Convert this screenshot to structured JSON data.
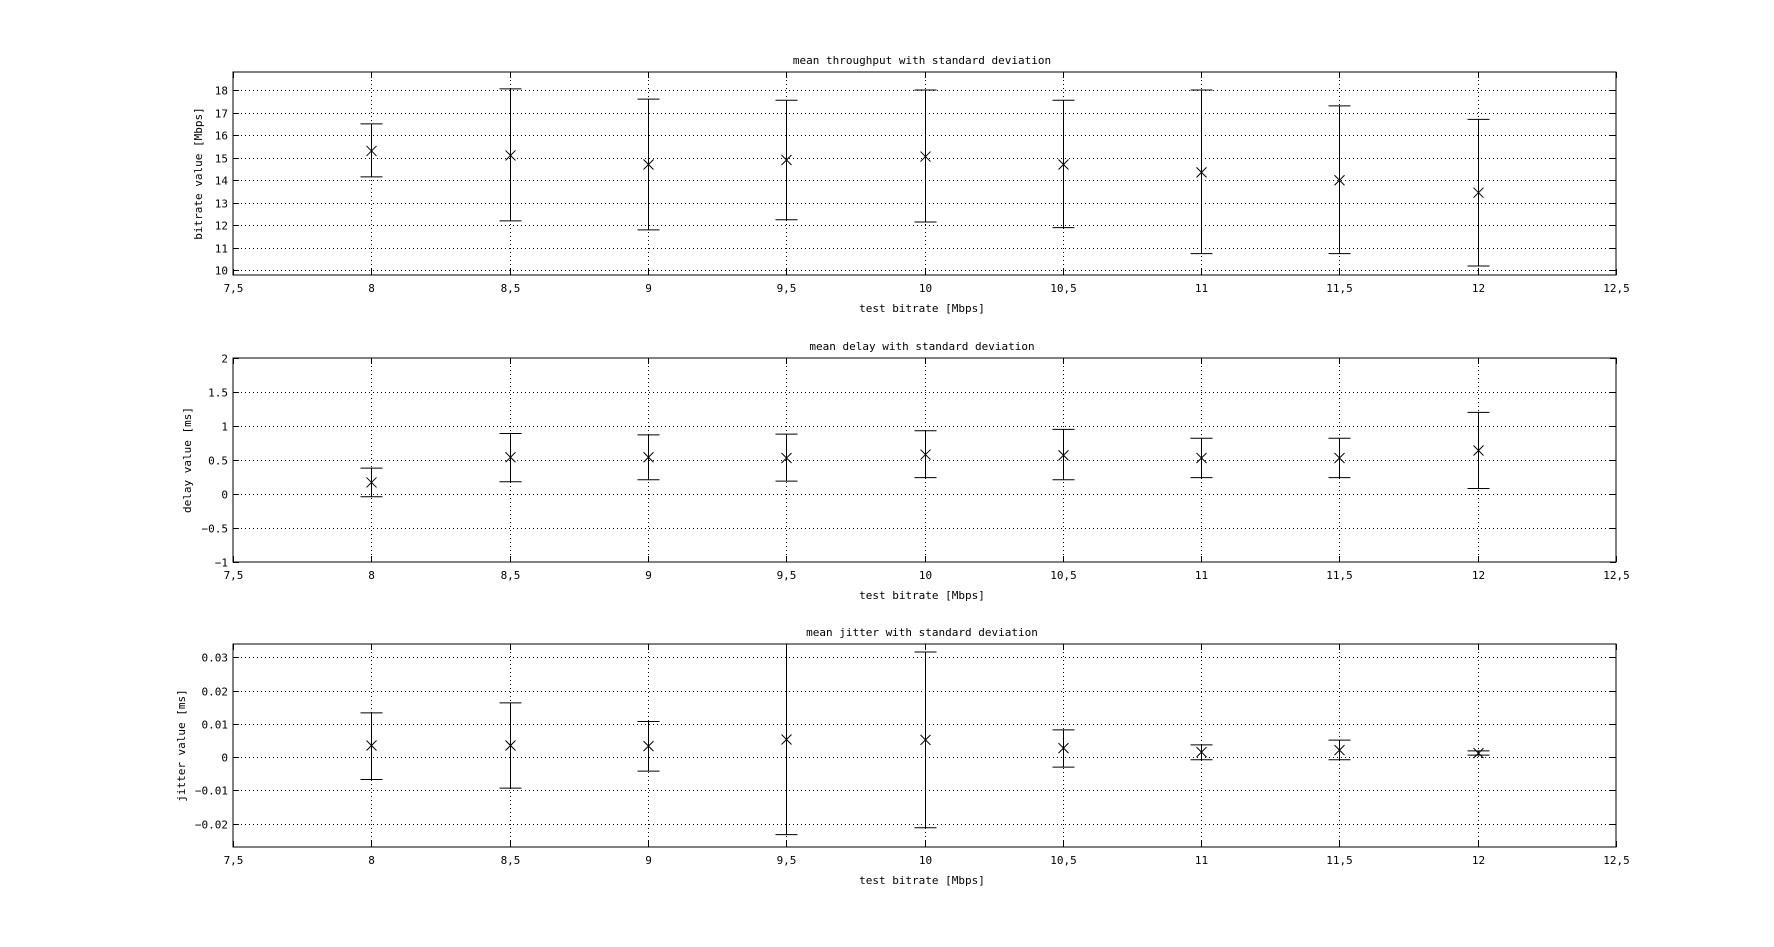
{
  "chart_data": [
    {
      "type": "errorbar",
      "title": "mean throughput with standard deviation",
      "xlabel": "test bitrate [Mbps]",
      "ylabel": "bitrate value [Mbps]",
      "xlim": [
        7.5,
        12.5
      ],
      "ylim": [
        9.8,
        18.8
      ],
      "x_ticks": [
        7.5,
        8,
        8.5,
        9,
        9.5,
        10,
        10.5,
        11,
        11.5,
        12,
        12.5
      ],
      "x_tick_labels": [
        "7,5",
        "8",
        "8,5",
        "9",
        "9,5",
        "10",
        "10,5",
        "11",
        "11,5",
        "12",
        "12,5"
      ],
      "y_ticks": [
        10,
        11,
        12,
        13,
        14,
        15,
        16,
        17,
        18
      ],
      "y_tick_labels": [
        "10",
        "11",
        "12",
        "13",
        "14",
        "15",
        "16",
        "17",
        "18"
      ],
      "grid": true,
      "marker": "x",
      "x": [
        8,
        8.5,
        9,
        9.5,
        10,
        10.5,
        11,
        11.5,
        12
      ],
      "mean": [
        15.3,
        15.1,
        14.7,
        14.9,
        15.05,
        14.7,
        14.35,
        14.0,
        13.45
      ],
      "lower": [
        14.15,
        12.2,
        11.8,
        12.25,
        12.15,
        11.9,
        10.75,
        10.75,
        10.2
      ],
      "upper": [
        16.5,
        18.05,
        17.6,
        17.55,
        18.0,
        17.55,
        18.0,
        17.3,
        16.7
      ]
    },
    {
      "type": "errorbar",
      "title": "mean delay with standard deviation",
      "xlabel": "test bitrate [Mbps]",
      "ylabel": "delay value [ms]",
      "xlim": [
        7.5,
        12.5
      ],
      "ylim": [
        -1,
        2
      ],
      "x_ticks": [
        7.5,
        8,
        8.5,
        9,
        9.5,
        10,
        10.5,
        11,
        11.5,
        12,
        12.5
      ],
      "x_tick_labels": [
        "7,5",
        "8",
        "8,5",
        "9",
        "9,5",
        "10",
        "10,5",
        "11",
        "11,5",
        "12",
        "12,5"
      ],
      "y_ticks": [
        -1,
        -0.5,
        0,
        0.5,
        1,
        1.5,
        2
      ],
      "y_tick_labels": [
        "−1",
        "−0.5",
        "0",
        "0.5",
        "1",
        "1.5",
        "2"
      ],
      "grid": true,
      "marker": "x",
      "x": [
        8,
        8.5,
        9,
        9.5,
        10,
        10.5,
        11,
        11.5,
        12
      ],
      "mean": [
        0.17,
        0.54,
        0.54,
        0.53,
        0.58,
        0.57,
        0.53,
        0.53,
        0.64
      ],
      "lower": [
        -0.04,
        0.18,
        0.21,
        0.19,
        0.24,
        0.21,
        0.24,
        0.24,
        0.08
      ],
      "upper": [
        0.38,
        0.89,
        0.87,
        0.88,
        0.93,
        0.95,
        0.82,
        0.82,
        1.2
      ]
    },
    {
      "type": "errorbar",
      "title": "mean jitter with standard deviation",
      "xlabel": "test bitrate [Mbps]",
      "ylabel": "jitter value [ms]",
      "xlim": [
        7.5,
        12.5
      ],
      "ylim": [
        -0.027,
        0.034
      ],
      "x_ticks": [
        7.5,
        8,
        8.5,
        9,
        9.5,
        10,
        10.5,
        11,
        11.5,
        12,
        12.5
      ],
      "x_tick_labels": [
        "7,5",
        "8",
        "8,5",
        "9",
        "9,5",
        "10",
        "10,5",
        "11",
        "11,5",
        "12",
        "12,5"
      ],
      "y_ticks": [
        -0.02,
        -0.01,
        0,
        0.01,
        0.02,
        0.03
      ],
      "y_tick_labels": [
        "−0.02",
        "−0.01",
        "0",
        "0.01",
        "0.02",
        "0.03"
      ],
      "grid": true,
      "marker": "x",
      "x": [
        8,
        8.5,
        9,
        9.5,
        10,
        10.5,
        11,
        11.5,
        12
      ],
      "mean": [
        0.0035,
        0.0035,
        0.0033,
        0.0053,
        0.0052,
        0.0027,
        0.0015,
        0.0021,
        0.0012
      ],
      "lower": [
        -0.0067,
        -0.0093,
        -0.0042,
        -0.0233,
        -0.0212,
        -0.003,
        -0.0008,
        -0.0008,
        0.0006
      ],
      "upper": [
        0.0133,
        0.0163,
        0.0107,
        0.034,
        0.0316,
        0.0082,
        0.0037,
        0.0051,
        0.0019
      ]
    }
  ]
}
